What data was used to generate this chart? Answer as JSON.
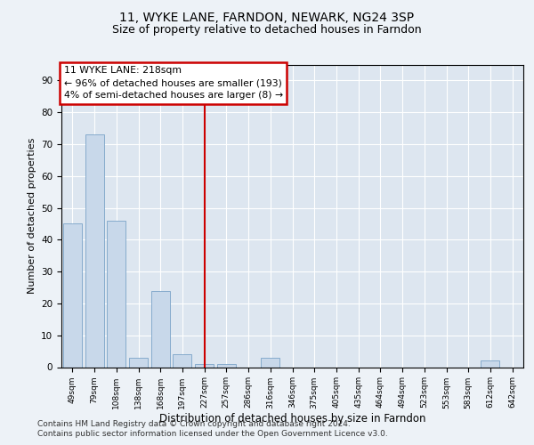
{
  "title1": "11, WYKE LANE, FARNDON, NEWARK, NG24 3SP",
  "title2": "Size of property relative to detached houses in Farndon",
  "xlabel": "Distribution of detached houses by size in Farndon",
  "ylabel": "Number of detached properties",
  "categories": [
    "49sqm",
    "79sqm",
    "108sqm",
    "138sqm",
    "168sqm",
    "197sqm",
    "227sqm",
    "257sqm",
    "286sqm",
    "316sqm",
    "346sqm",
    "375sqm",
    "405sqm",
    "435sqm",
    "464sqm",
    "494sqm",
    "523sqm",
    "553sqm",
    "583sqm",
    "612sqm",
    "642sqm"
  ],
  "values": [
    45,
    73,
    46,
    3,
    24,
    4,
    1,
    1,
    0,
    3,
    0,
    0,
    0,
    0,
    0,
    0,
    0,
    0,
    0,
    2,
    0
  ],
  "bar_color": "#c8d8ea",
  "bar_edge_color": "#7aa3c8",
  "vline_index": 6.0,
  "annotation_text_line1": "11 WYKE LANE: 218sqm",
  "annotation_text_line2": "← 96% of detached houses are smaller (193)",
  "annotation_text_line3": "4% of semi-detached houses are larger (8) →",
  "annotation_box_facecolor": "#ffffff",
  "annotation_box_edgecolor": "#cc0000",
  "vline_color": "#cc0000",
  "ylim": [
    0,
    95
  ],
  "yticks": [
    0,
    10,
    20,
    30,
    40,
    50,
    60,
    70,
    80,
    90
  ],
  "plot_bg_color": "#dde6f0",
  "fig_bg_color": "#edf2f7",
  "footer1": "Contains HM Land Registry data © Crown copyright and database right 2024.",
  "footer2": "Contains public sector information licensed under the Open Government Licence v3.0."
}
